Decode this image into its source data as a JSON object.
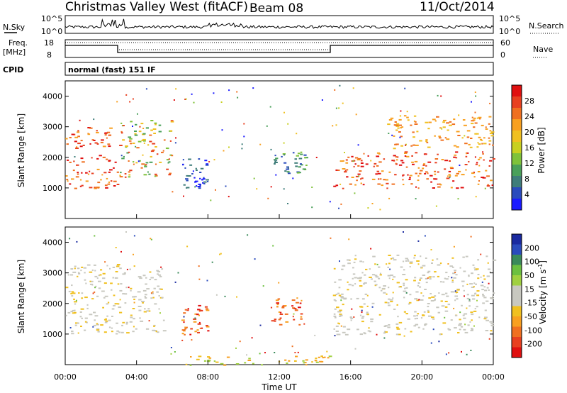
{
  "header": {
    "title": "Christmas Valley West (fitACF)",
    "beam": "Beam 08",
    "date": "11/Oct/2014"
  },
  "strip": {
    "nsky_label": "N.Sky",
    "nsearch_label": "N.Search",
    "nsky_ticks": [
      "10^5",
      "10^0"
    ],
    "freq_label": "Freq.",
    "freq_unit": "[MHz]",
    "freq_ticks": [
      "18",
      "8"
    ],
    "nave_label": "Nave",
    "nave_ticks": [
      "60",
      "0"
    ],
    "cpid_label": "CPID",
    "cpid_text": "normal (fast) 151 IF"
  },
  "axes": {
    "range_label": "Slant Range [km]",
    "range_ticks": [
      "1000",
      "2000",
      "3000",
      "4000"
    ],
    "time_label": "Time UT",
    "time_ticks": [
      "00:00",
      "04:00",
      "08:00",
      "12:00",
      "16:00",
      "20:00",
      "00:00"
    ]
  },
  "colorbars": {
    "power": {
      "label": "Power [dB]",
      "ticks": [
        "4",
        "8",
        "12",
        "16",
        "20",
        "24",
        "28"
      ],
      "colors": [
        "#1a1aff",
        "#2a4bbd",
        "#3f7d7a",
        "#4aa05a",
        "#7fc23a",
        "#c8d020",
        "#f0c020",
        "#f8a020",
        "#f07020",
        "#e84020",
        "#e01010"
      ]
    },
    "velocity": {
      "label_main": "Velocity [m s",
      "label_sup": "-1",
      "label_end": "]",
      "ticks": [
        "200",
        "100",
        "50",
        "15",
        "-15",
        "-50",
        "-100",
        "-200"
      ],
      "colors": [
        "#1a2aa0",
        "#2a4bbd",
        "#3a8a5a",
        "#6cc040",
        "#a0d040",
        "#c8c8c0",
        "#c8c8c0",
        "#f0c020",
        "#f8a020",
        "#f07020",
        "#e84020",
        "#e01010"
      ]
    }
  },
  "chart_data": [
    {
      "type": "heatmap",
      "title": "Power",
      "xlabel": "Time UT",
      "ylabel": "Slant Range [km]",
      "xlim": [
        "00:00",
        "24:00"
      ],
      "ylim": [
        0,
        4500
      ],
      "colorbar": "Power [dB]",
      "regions": [
        {
          "t0": 0.0,
          "t1": 3.0,
          "r0": 1000,
          "r1": 2100,
          "level": "high"
        },
        {
          "t0": 0.0,
          "t1": 2.5,
          "r0": 2300,
          "r1": 3000,
          "level": "high"
        },
        {
          "t0": 3.0,
          "t1": 6.0,
          "r0": 1300,
          "r1": 3300,
          "level": "mixed"
        },
        {
          "t0": 6.5,
          "t1": 8.0,
          "r0": 1000,
          "r1": 2000,
          "level": "low"
        },
        {
          "t0": 11.5,
          "t1": 13.5,
          "r0": 1500,
          "r1": 2200,
          "level": "low-mid"
        },
        {
          "t0": 15.0,
          "t1": 24.0,
          "r0": 1000,
          "r1": 2200,
          "level": "high"
        },
        {
          "t0": 18.0,
          "t1": 24.0,
          "r0": 2300,
          "r1": 3400,
          "level": "mid-high"
        }
      ]
    },
    {
      "type": "heatmap",
      "title": "Velocity",
      "xlabel": "Time UT",
      "ylabel": "Slant Range [km]",
      "xlim": [
        "00:00",
        "24:00"
      ],
      "ylim": [
        0,
        4500
      ],
      "colorbar": "Velocity [m s-1]",
      "regions": [
        {
          "t0": 0.0,
          "t1": 5.5,
          "r0": 1000,
          "r1": 3300,
          "level": "ground-scatter"
        },
        {
          "t0": 6.5,
          "t1": 8.0,
          "r0": 1000,
          "r1": 2000,
          "level": "negative"
        },
        {
          "t0": 11.5,
          "t1": 13.5,
          "r0": 1300,
          "r1": 2200,
          "level": "negative"
        },
        {
          "t0": 15.0,
          "t1": 24.0,
          "r0": 1000,
          "r1": 3600,
          "level": "ground-scatter"
        },
        {
          "t0": 6.0,
          "t1": 15.0,
          "r0": 0,
          "r1": 300,
          "level": "weak-negative"
        }
      ]
    }
  ]
}
